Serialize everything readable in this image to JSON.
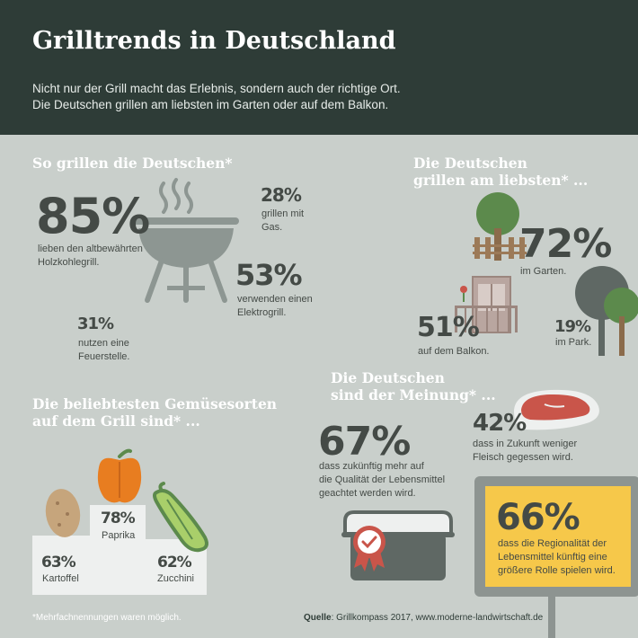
{
  "header": {
    "title": "Grilltrends in Deutschland",
    "subtitle_line1": "Nicht nur der Grill macht das Erlebnis, sondern auch der richtige Ort.",
    "subtitle_line2": "Die Deutschen grillen am liebsten im Garten oder auf dem Balkon."
  },
  "grill": {
    "heading": "So grillen die Deutschen*",
    "stats": [
      {
        "value": "85%",
        "label_line1": "lieben den altbewährten",
        "label_line2": "Holzkohlegrill."
      },
      {
        "value": "28%",
        "label_line1": "grillen mit",
        "label_line2": "Gas."
      },
      {
        "value": "53%",
        "label_line1": "verwenden einen",
        "label_line2": "Elektrogrill."
      },
      {
        "value": "31%",
        "label_line1": "nutzen eine",
        "label_line2": "Feuerstelle."
      }
    ]
  },
  "places": {
    "heading_line1": "Die Deutschen",
    "heading_line2": "grillen am liebsten* ...",
    "stats": [
      {
        "value": "72%",
        "label": "im Garten."
      },
      {
        "value": "51%",
        "label": "auf dem Balkon."
      },
      {
        "value": "19%",
        "label": "im Park."
      }
    ]
  },
  "vegetables": {
    "heading_line1": "Die beliebtesten Gemüsesorten",
    "heading_line2": "auf dem Grill sind* ...",
    "items": [
      {
        "value": "78%",
        "label": "Paprika"
      },
      {
        "value": "63%",
        "label": "Kartoffel"
      },
      {
        "value": "62%",
        "label": "Zucchini"
      }
    ]
  },
  "opinion": {
    "heading_line1": "Die Deutschen",
    "heading_line2": "sind der Meinung* ...",
    "stats": [
      {
        "value": "42%",
        "label_line1": "dass in Zukunft weniger",
        "label_line2": "Fleisch gegessen wird."
      },
      {
        "value": "67%",
        "label_line1": "dass zukünftig mehr auf",
        "label_line2": "die Qualität der Lebensmittel",
        "label_line3": "geachtet werden wird."
      },
      {
        "value": "66%",
        "label_line1": "dass die Regionalität der",
        "label_line2": "Lebensmittel künftig eine",
        "label_line3": "größere Rolle spielen wird."
      }
    ]
  },
  "footer": {
    "footnote": "*Mehrfachnennungen waren möglich.",
    "source_label": "Quelle",
    "source_text": ": Grillkompass 2017, www.moderne-landwirtschaft.de"
  },
  "icons": [
    "charcoal-grill-icon",
    "tree-icon",
    "garden-fence-icon",
    "balcony-icon",
    "park-trees-icon",
    "bell-pepper-icon",
    "potato-icon",
    "zucchini-icon",
    "steak-icon",
    "food-container-icon",
    "quality-seal-icon",
    "regional-sign-icon"
  ],
  "colors": {
    "header_bg": "#2e3c37",
    "body_bg": "#c9cfcb",
    "text": "#444a46",
    "accent_yellow": "#f6c84a",
    "green": "#5c8a4c",
    "pepper": "#e87d20"
  }
}
